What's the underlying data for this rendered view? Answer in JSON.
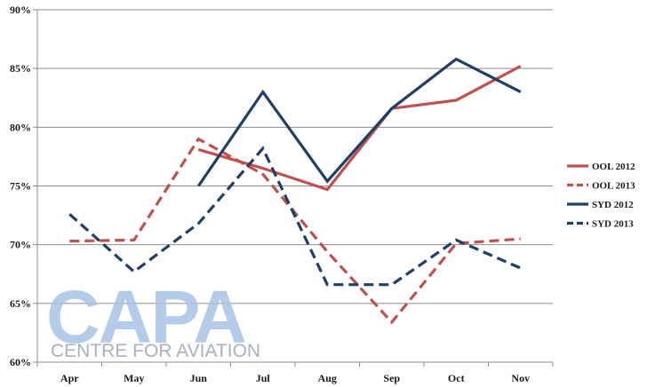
{
  "chart_data": {
    "type": "line",
    "categories": [
      "Apr",
      "May",
      "Jun",
      "Jul",
      "Aug",
      "Sep",
      "Oct",
      "Nov"
    ],
    "ylim": [
      60,
      90
    ],
    "yticks": [
      60,
      65,
      70,
      75,
      80,
      85,
      90
    ],
    "ytick_labels": [
      "60%",
      "65%",
      "70%",
      "75%",
      "80%",
      "85%",
      "90%"
    ],
    "grid": true,
    "legend_position": "right",
    "series": [
      {
        "name": "OOL 2012",
        "color": "#c0504d",
        "dash": "solid",
        "values": [
          null,
          null,
          78.1,
          76.5,
          74.7,
          81.6,
          82.3,
          85.2
        ]
      },
      {
        "name": "OOL 2013",
        "color": "#c0504d",
        "dash": "dashed",
        "values": [
          70.3,
          70.4,
          79.0,
          76.0,
          69.4,
          63.4,
          70.1,
          70.5
        ]
      },
      {
        "name": "SYD 2012",
        "color": "#1f3f66",
        "dash": "solid",
        "values": [
          null,
          null,
          75.0,
          83.0,
          75.4,
          81.6,
          85.8,
          83.0
        ]
      },
      {
        "name": "SYD 2013",
        "color": "#1f3f66",
        "dash": "dashed",
        "values": [
          72.6,
          67.7,
          71.8,
          78.2,
          66.6,
          66.6,
          70.4,
          68.0
        ]
      }
    ]
  },
  "watermark": {
    "logo": "CAPA",
    "tagline": "CENTRE FOR AVIATION"
  }
}
